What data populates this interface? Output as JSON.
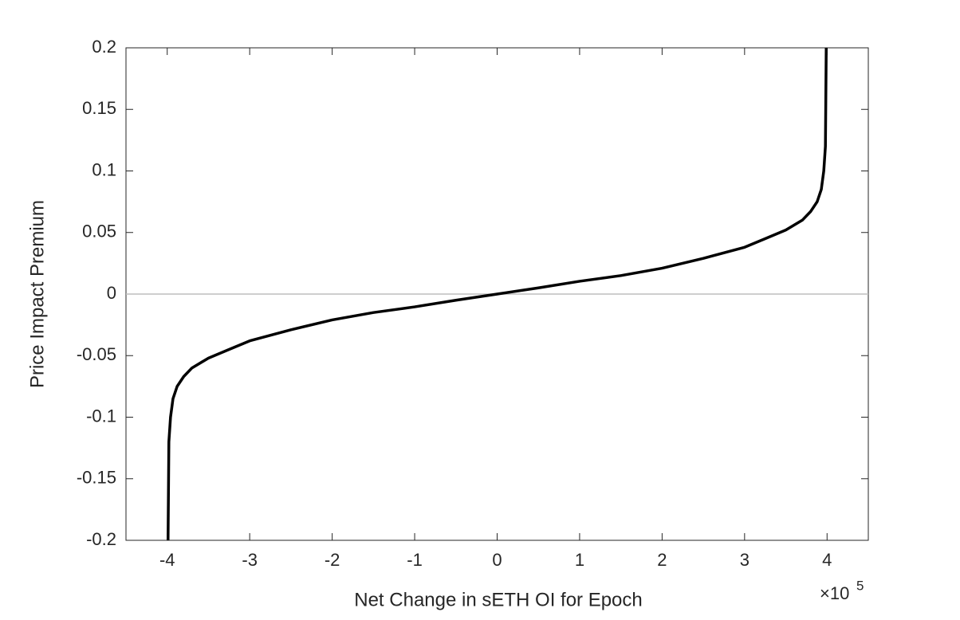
{
  "chart_data": {
    "type": "line",
    "xlabel": "Net Change in sETH OI for Epoch",
    "ylabel": "Price Impact Premium",
    "x_multiplier": "×10",
    "x_exponent": "5",
    "x": [
      -3.99,
      -3.98,
      -3.96,
      -3.93,
      -3.88,
      -3.8,
      -3.7,
      -3.5,
      -3.25,
      -3,
      -2.5,
      -2,
      -1.5,
      -1,
      -0.5,
      0,
      0.5,
      1,
      1.5,
      2,
      2.5,
      3,
      3.25,
      3.5,
      3.7,
      3.8,
      3.88,
      3.93,
      3.96,
      3.98,
      3.99
    ],
    "series": [
      {
        "color": "#000000",
        "values": [
          -0.2,
          -0.12,
          -0.1,
          -0.085,
          -0.075,
          -0.067,
          -0.06,
          -0.052,
          -0.045,
          -0.038,
          -0.029,
          -0.021,
          -0.015,
          -0.0104,
          -0.005,
          0,
          0.005,
          0.0104,
          0.015,
          0.021,
          0.029,
          0.038,
          0.045,
          0.052,
          0.06,
          0.067,
          0.075,
          0.085,
          0.1,
          0.12,
          0.2
        ]
      }
    ],
    "hline": 0,
    "hline_color": "#bdbdbd",
    "xlim": [
      -4.5,
      4.5
    ],
    "ylim": [
      -0.2,
      0.2
    ],
    "xticks": [
      -4,
      -3,
      -2,
      -1,
      0,
      1,
      2,
      3,
      4
    ],
    "yticks": [
      -0.2,
      -0.15,
      -0.1,
      -0.05,
      0,
      0.05,
      0.1,
      0.15,
      0.2
    ]
  }
}
